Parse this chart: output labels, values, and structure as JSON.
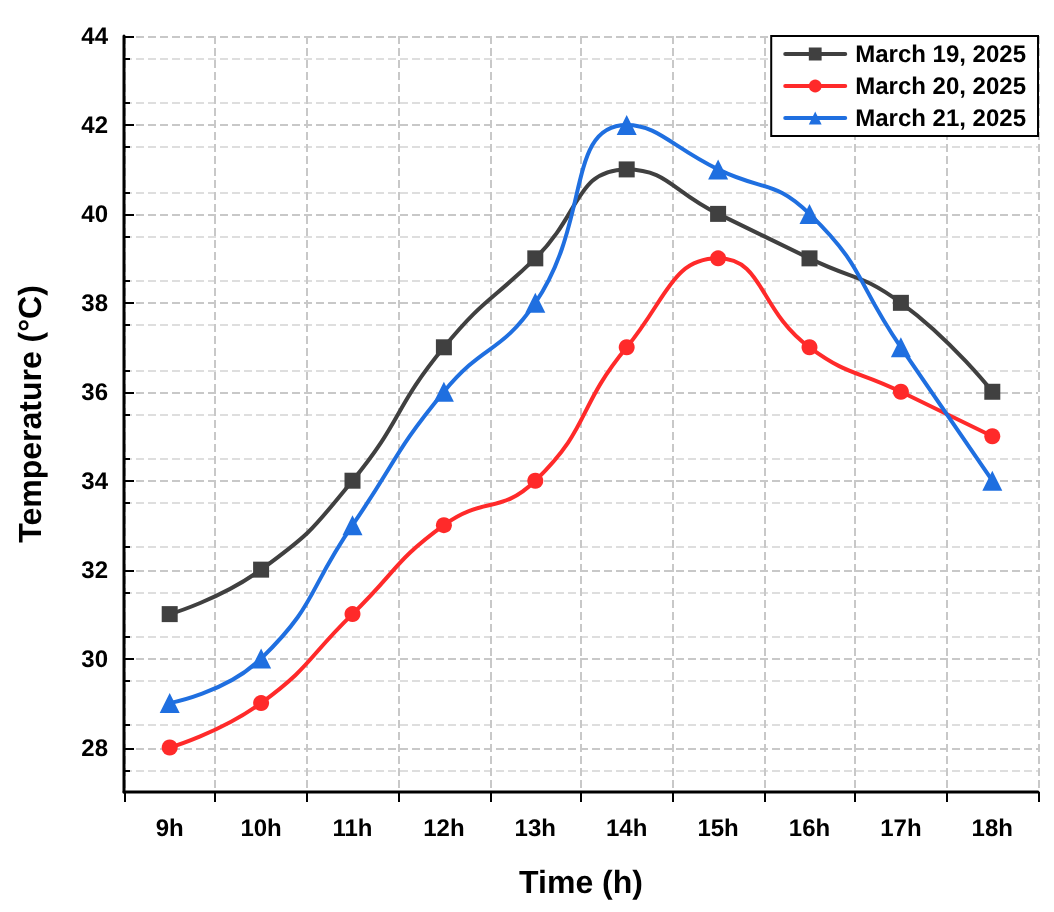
{
  "chart_data": {
    "type": "line",
    "xlabel": "Time (h)",
    "ylabel": "Temperature (°C)",
    "categories": [
      "9h",
      "10h",
      "11h",
      "12h",
      "13h",
      "14h",
      "15h",
      "16h",
      "17h",
      "18h"
    ],
    "series": [
      {
        "name": "March 19, 2025",
        "color": "#404040",
        "marker": "square",
        "values": [
          31,
          32,
          34,
          37,
          39,
          41,
          40,
          39,
          38,
          36
        ]
      },
      {
        "name": "March 20, 2025",
        "color": "#ff2a2a",
        "marker": "circle",
        "values": [
          28,
          29,
          31,
          33,
          34,
          37,
          39,
          37,
          36,
          35
        ]
      },
      {
        "name": "March 21, 2025",
        "color": "#1f6fe0",
        "marker": "triangle",
        "values": [
          29,
          30,
          33,
          36,
          38,
          42,
          41,
          40,
          37,
          34
        ]
      }
    ],
    "ylim": [
      27,
      44
    ],
    "yticks": [
      28,
      30,
      32,
      34,
      36,
      38,
      40,
      42,
      44
    ],
    "grid": true,
    "legend": "top right",
    "line_style": "solid"
  }
}
